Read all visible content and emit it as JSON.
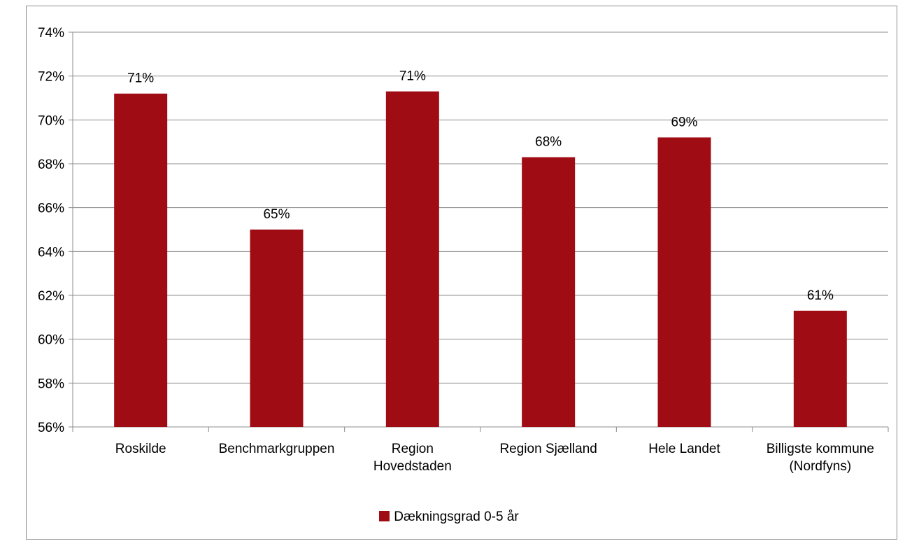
{
  "page": {
    "title_fragment": ""
  },
  "chart_data": {
    "type": "bar",
    "categories": [
      [
        "Roskilde"
      ],
      [
        "Benchmarkgruppen"
      ],
      [
        "Region",
        "Hovedstaden"
      ],
      [
        "Region Sjælland"
      ],
      [
        "Hele Landet"
      ],
      [
        "Billigste kommune",
        "(Nordfyns)"
      ]
    ],
    "series": [
      {
        "name": "Dækningsgrad 0-5 år",
        "values": [
          71.2,
          65.0,
          71.3,
          68.3,
          69.2,
          61.3
        ],
        "data_labels": [
          "71%",
          "65%",
          "71%",
          "68%",
          "69%",
          "61%"
        ],
        "color": "#a00c14"
      }
    ],
    "yticks": [
      "56%",
      "58%",
      "60%",
      "62%",
      "64%",
      "66%",
      "68%",
      "70%",
      "72%",
      "74%"
    ],
    "ylim": [
      56,
      74
    ],
    "grid": true,
    "legend_position": "bottom"
  }
}
